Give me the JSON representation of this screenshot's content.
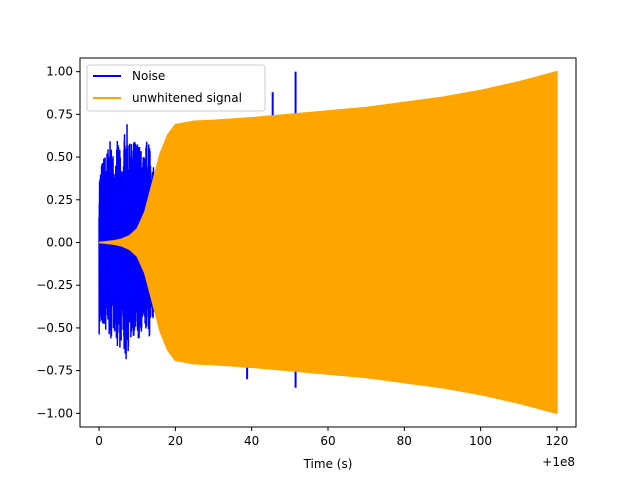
{
  "chart_data": {
    "type": "line",
    "title": "",
    "xlabel": "Time (s)",
    "ylabel": "",
    "x_offset_label": "+1e8",
    "xlim": [
      -5,
      125
    ],
    "ylim": [
      -1.08,
      1.08
    ],
    "xticks": [
      0,
      20,
      40,
      60,
      80,
      100,
      120
    ],
    "xtick_labels": [
      "0",
      "20",
      "40",
      "60",
      "80",
      "100",
      "120"
    ],
    "yticks": [
      -1.0,
      -0.75,
      -0.5,
      -0.25,
      0.0,
      0.25,
      0.5,
      0.75,
      1.0
    ],
    "ytick_labels": [
      "−1.00",
      "−0.75",
      "−0.50",
      "−0.25",
      "0.00",
      "0.25",
      "0.50",
      "0.75",
      "1.00"
    ],
    "grid": false,
    "legend_position": "top-left",
    "series": [
      {
        "name": "Noise",
        "color": "#0000ff",
        "style": "oscillating noise bursts",
        "envelope": {
          "x": [
            0,
            1,
            2,
            3,
            4,
            5,
            6,
            7,
            8,
            9,
            10,
            11,
            12,
            13,
            14,
            15,
            16,
            17
          ],
          "upper": [
            0.42,
            0.5,
            0.55,
            0.6,
            0.52,
            0.62,
            0.45,
            0.75,
            0.58,
            0.6,
            0.62,
            0.55,
            0.52,
            0.7,
            0.45,
            0.42,
            0.35,
            0.3
          ],
          "lower": [
            -0.57,
            -0.5,
            -0.55,
            -0.6,
            -0.52,
            -0.65,
            -0.58,
            -0.72,
            -0.6,
            -0.55,
            -0.58,
            -0.62,
            -0.5,
            -0.58,
            -0.48,
            -0.42,
            -0.35,
            -0.3
          ]
        },
        "spikes": [
          {
            "x": 38.8,
            "ymax": -0.6,
            "ymin": -0.8
          },
          {
            "x": 45.5,
            "ymax": 0.88,
            "ymin": 0.55
          },
          {
            "x": 51.5,
            "ymax": 1.0,
            "ymin": -0.85
          }
        ]
      },
      {
        "name": "unwhitened signal",
        "color": "#ffa500",
        "style": "filled oscillation envelope",
        "envelope": {
          "x": [
            0,
            2,
            4,
            6,
            8,
            10,
            12,
            14,
            16,
            18,
            20,
            25,
            30,
            40,
            50,
            60,
            70,
            80,
            90,
            100,
            110,
            120
          ],
          "upper": [
            0.0,
            0.005,
            0.01,
            0.02,
            0.04,
            0.08,
            0.18,
            0.35,
            0.52,
            0.63,
            0.69,
            0.71,
            0.715,
            0.73,
            0.75,
            0.77,
            0.79,
            0.82,
            0.85,
            0.89,
            0.94,
            1.0
          ],
          "lower": [
            0.0,
            -0.005,
            -0.01,
            -0.02,
            -0.04,
            -0.08,
            -0.18,
            -0.35,
            -0.52,
            -0.63,
            -0.69,
            -0.71,
            -0.715,
            -0.73,
            -0.75,
            -0.77,
            -0.79,
            -0.82,
            -0.85,
            -0.89,
            -0.94,
            -1.0
          ]
        }
      }
    ]
  }
}
